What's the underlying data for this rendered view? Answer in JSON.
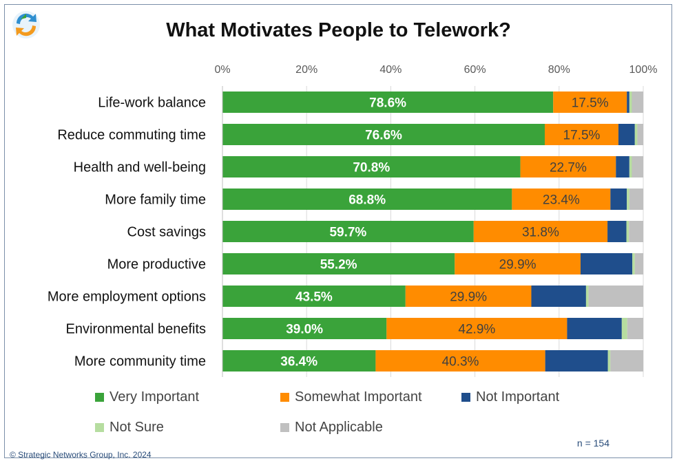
{
  "title": "What Motivates People to Telework?",
  "chart_data": {
    "type": "bar",
    "orientation": "horizontal",
    "stacked": true,
    "title": "What Motivates People to Telework?",
    "xlim": [
      0,
      100
    ],
    "xticks": [
      "0%",
      "20%",
      "40%",
      "60%",
      "80%",
      "100%"
    ],
    "grid": true,
    "legend_position": "bottom",
    "categories": [
      "Life-work balance",
      "Reduce commuting time",
      "Health and well-being",
      "More family time",
      "Cost savings",
      "More productive",
      "More employment options",
      "Environmental benefits",
      "More community time"
    ],
    "series": [
      {
        "name": "Very Important",
        "color": "#3aa33a",
        "values": [
          78.6,
          76.6,
          70.8,
          68.8,
          59.7,
          55.2,
          43.5,
          39.0,
          36.4
        ],
        "labels": [
          "78.6%",
          "76.6%",
          "70.8%",
          "68.8%",
          "59.7%",
          "55.2%",
          "43.5%",
          "39.0%",
          "36.4%"
        ]
      },
      {
        "name": "Somewhat Important",
        "color": "#ff8c00",
        "values": [
          17.5,
          17.5,
          22.7,
          23.4,
          31.8,
          29.9,
          29.9,
          42.9,
          40.3
        ],
        "labels": [
          "17.5%",
          "17.5%",
          "22.7%",
          "23.4%",
          "31.8%",
          "29.9%",
          "29.9%",
          "42.9%",
          "40.3%"
        ]
      },
      {
        "name": "Not Important",
        "color": "#1f4e8c",
        "values": [
          0.6,
          3.9,
          3.2,
          3.9,
          4.5,
          12.3,
          13.0,
          13.0,
          14.9
        ]
      },
      {
        "name": "Not Sure",
        "color": "#b6dda0",
        "values": [
          0.6,
          0.6,
          0.6,
          0.6,
          0.6,
          0.6,
          0.6,
          1.3,
          0.6
        ]
      },
      {
        "name": "Not Applicable",
        "color": "#c0c0c0",
        "values": [
          2.7,
          1.4,
          2.7,
          3.3,
          3.4,
          2.0,
          13.0,
          3.8,
          7.8
        ]
      }
    ]
  },
  "footer": {
    "n_label": "n = 154",
    "copyright": "© Strategic Networks Group, Inc. 2024"
  }
}
